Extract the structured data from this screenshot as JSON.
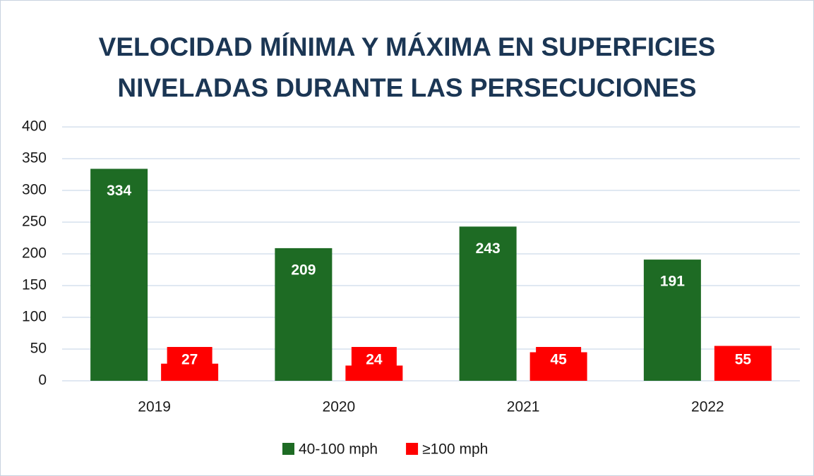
{
  "chart_data": {
    "type": "bar",
    "title": "VELOCIDAD MÍNIMA Y MÁXIMA EN SUPERFICIES NIVELADAS DURANTE LAS PERSECUCIONES",
    "categories": [
      "2019",
      "2020",
      "2021",
      "2022"
    ],
    "series": [
      {
        "name": "40-100 mph",
        "color": "#1e6b24",
        "values": [
          334,
          209,
          243,
          191
        ]
      },
      {
        "name": "≥100 mph",
        "color": "#ff0000",
        "values": [
          27,
          24,
          45,
          55
        ]
      }
    ],
    "ylim": [
      0,
      400
    ],
    "yticks": [
      0,
      50,
      100,
      150,
      200,
      250,
      300,
      350,
      400
    ],
    "grid": true,
    "legend": "bottom"
  }
}
